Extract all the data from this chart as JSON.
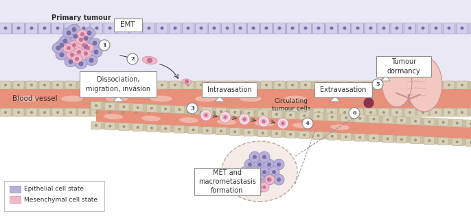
{
  "bg_top_color": "#ffffff",
  "bg_tissue_color": "#ebe8f5",
  "tissue_strip_color": "#c8c3e0",
  "tissue_cell_color": "#d4cfe8",
  "tissue_cell_edge": "#a898cc",
  "vessel_interior": "#e8907a",
  "vessel_wall_color": "#c8bea0",
  "vessel_wall_cells": "#d0c8b0",
  "epithelial_color": "#b8b0d8",
  "epithelial_edge": "#9088b8",
  "epithelial_nucleus": "#7870a8",
  "mesenchymal_color": "#f0b8c8",
  "mesenchymal_edge": "#d090a8",
  "mesenchymal_nucleus": "#c87098",
  "arrow_color": "#404040",
  "box_color": "#ffffff",
  "box_edge": "#909090",
  "font_color": "#303030",
  "font_size": 7,
  "highlight_color": "#ffffff",
  "labels": {
    "primary_tumour": "Primary tumour",
    "emt": "EMT",
    "dissociation": "Dissociation,\nmigration, invasion",
    "intravasation": "Intravasation",
    "extravasation": "Extravasation",
    "blood_vessel": "Blood vessel",
    "circulating": "Circulating\ntumour cells",
    "met": "MET and\nmacrometastasis\nformation",
    "tumour_dormancy": "Tumour\ndormancy",
    "epithelial": "Epithelial cell state",
    "mesenchymal": "Mesenchymal cell state"
  }
}
